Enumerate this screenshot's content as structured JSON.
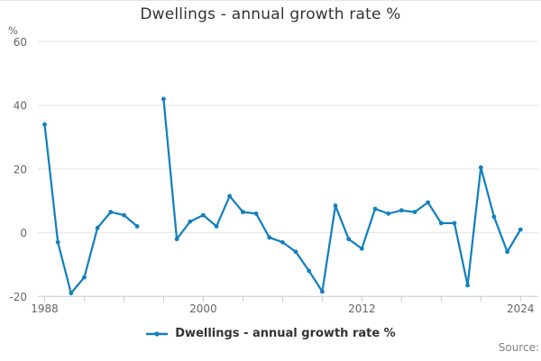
{
  "page": {
    "source_text": "Source:"
  },
  "chart_data": {
    "type": "line",
    "title": "Dwellings - annual growth rate %",
    "y_unit": "%",
    "xlabel": "",
    "ylabel": "%",
    "legend": [
      "Dwellings - annual growth rate %"
    ],
    "legend_position": "bottom-center",
    "grid": true,
    "ylim": [
      -20,
      60
    ],
    "y_ticks": [
      60,
      40,
      20,
      0,
      -20
    ],
    "x_range": [
      1988,
      2024
    ],
    "x_tick_interval_years": 3,
    "x_label_years": [
      1988,
      2000,
      2012,
      2024
    ],
    "missing_years": [
      1996
    ],
    "colors": {
      "line": "#1380be",
      "grid": "#e6e6e6",
      "axis": "#c3ccd6",
      "tick_text": "#666666",
      "title_text": "#333333",
      "legend_text": "#333333",
      "source_text": "#808080"
    },
    "series": [
      {
        "name": "Dwellings - annual growth rate %",
        "color": "#1380be",
        "marker": "dot",
        "x": [
          1988,
          1989,
          1990,
          1991,
          1992,
          1993,
          1994,
          1995,
          1996,
          1997,
          1998,
          1999,
          2000,
          2001,
          2002,
          2003,
          2004,
          2005,
          2006,
          2007,
          2008,
          2009,
          2010,
          2011,
          2012,
          2013,
          2014,
          2015,
          2016,
          2017,
          2018,
          2019,
          2020,
          2021,
          2022,
          2023,
          2024
        ],
        "values": [
          34,
          -3,
          -19,
          -14,
          1.5,
          6.5,
          5.5,
          2,
          null,
          42,
          -2,
          3.5,
          5.5,
          2,
          11.5,
          6.5,
          6,
          -1.5,
          -3,
          -6,
          -12,
          -18.5,
          8.5,
          -2,
          -5,
          7.5,
          6,
          7,
          6.5,
          9.5,
          3,
          3,
          -16.5,
          20.5,
          5,
          -6,
          1
        ]
      }
    ]
  }
}
